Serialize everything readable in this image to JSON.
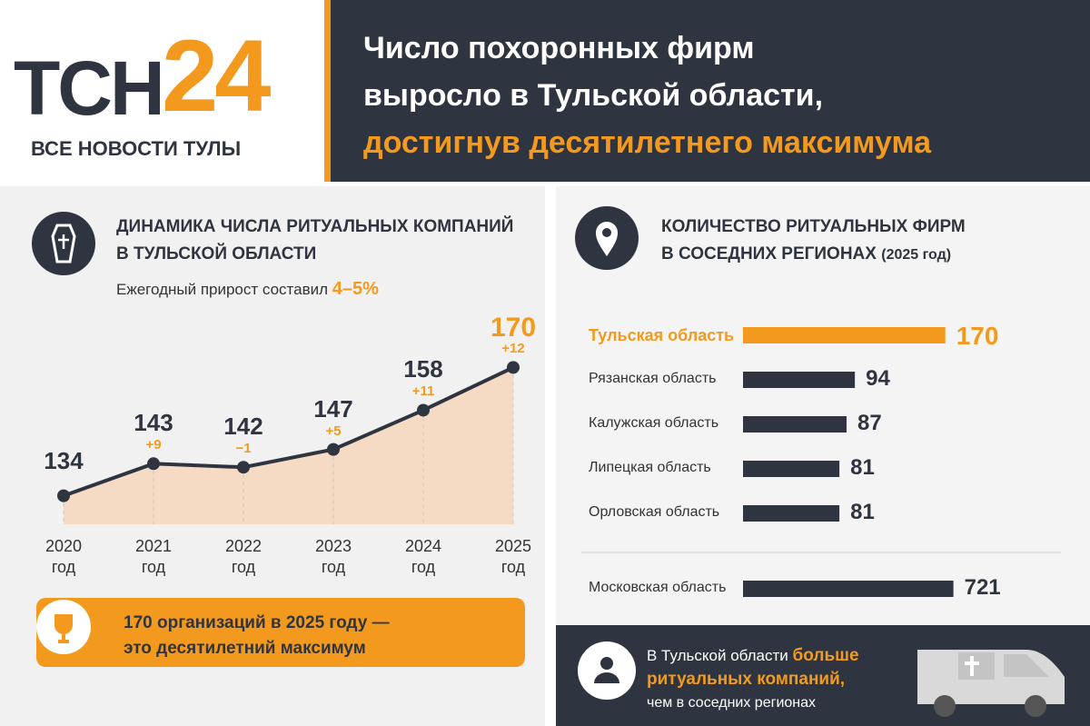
{
  "header": {
    "logo_main": "ТСН",
    "logo_number": "24",
    "tagline": "ВСЕ НОВОСТИ ТУЛЫ",
    "title": [
      "Число похоронных фирм",
      "выросло в Тульской области,"
    ],
    "title_highlight": "достигнув десятилетнего максимума"
  },
  "chart_data": [
    {
      "type": "line",
      "title": [
        "ДИНАМИКА ЧИСЛА РИТУАЛЬНЫХ КОМПАНИЙ",
        "В ТУЛЬСКОЙ ОБЛАСТИ"
      ],
      "subtitle": "Ежегодный прирост составил",
      "subtitle_highlight": "4–5%",
      "categories": [
        "2020 год",
        "2021 год",
        "2022 год",
        "2023 год",
        "2024 год",
        "2025 год"
      ],
      "values": [
        134,
        143,
        142,
        147,
        158,
        170
      ],
      "value_changes": [
        null,
        "+9",
        "−1",
        "+5",
        "+11",
        "+12"
      ],
      "color": "#2f3540",
      "fill_color": "#f7c99c",
      "change_color": "#f39a1e",
      "ylim": [
        126,
        178
      ]
    },
    {
      "type": "hbar",
      "title": [
        "КОЛИЧЕСТВО РИТУАЛЬНЫХ ФИРМ",
        "В СОСЕДНИХ РЕГИОНАХ"
      ],
      "title_note": "(2025 год)",
      "categories": [
        "Тульская область",
        "Рязанская область",
        "Калужская область",
        "Липецкая область",
        "Орловская область"
      ],
      "values": [
        170,
        94,
        87,
        81,
        81
      ],
      "colors": [
        "#f39a1e",
        "#2f3540",
        "#2f3540",
        "#2f3540",
        "#2f3540"
      ],
      "xlim": [
        0,
        200
      ]
    },
    {
      "type": "hbar",
      "categories": [
        "Московская область"
      ],
      "values": [
        721
      ],
      "colors": [
        "#2f3540"
      ],
      "xlim": [
        0,
        800
      ]
    }
  ],
  "highlight_banner": {
    "lines": [
      "170 организаций в 2025 году —",
      "это десятилетний максимум"
    ]
  },
  "footer_note": {
    "text": "В Тульской области",
    "highlight": [
      "больше",
      "ритуальных компаний,"
    ],
    "text_end": "чем в соседних регионах"
  }
}
